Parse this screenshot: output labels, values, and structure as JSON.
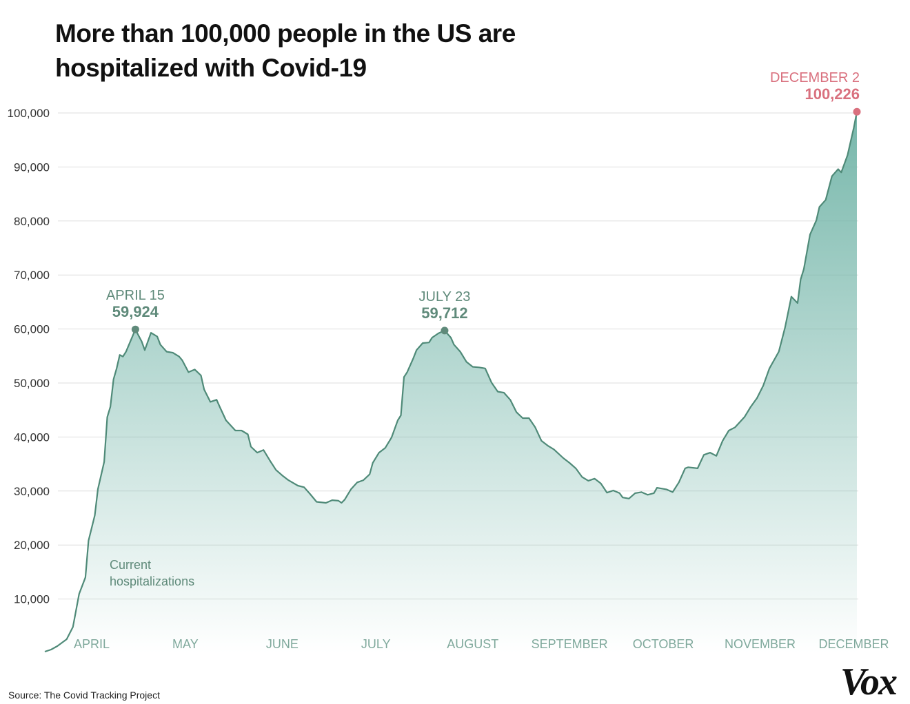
{
  "chart_data": {
    "type": "area",
    "title": "More than 100,000 people in the US are hospitalized with Covid-19",
    "source": "Source: The Covid Tracking Project",
    "logo": "Vox",
    "x": [
      77,
      79,
      81,
      84,
      86,
      88,
      90,
      91,
      93,
      94,
      96,
      97,
      98,
      99,
      100,
      101,
      102,
      103,
      106,
      107,
      108,
      109,
      111,
      113,
      114,
      116,
      118,
      120,
      121,
      123,
      125,
      127,
      128,
      130,
      132,
      133,
      135,
      138,
      140,
      142,
      143,
      145,
      147,
      149,
      151,
      153,
      155,
      158,
      160,
      162,
      164,
      167,
      169,
      171,
      172,
      173,
      175,
      177,
      179,
      181,
      182,
      184,
      186,
      188,
      190,
      191,
      192,
      193,
      195,
      196,
      198,
      200,
      201,
      203,
      205,
      207,
      208,
      210,
      212,
      214,
      216,
      218,
      220,
      222,
      224,
      226,
      228,
      230,
      232,
      234,
      236,
      238,
      240,
      243,
      245,
      247,
      249,
      251,
      253,
      255,
      257,
      259,
      261,
      262,
      264,
      266,
      268,
      270,
      272,
      273,
      276,
      278,
      280,
      282,
      283,
      286,
      288,
      290,
      292,
      294,
      296,
      298,
      301,
      303,
      305,
      307,
      309,
      312,
      314,
      316,
      318,
      319,
      320,
      322,
      324,
      325,
      327,
      329,
      331,
      332,
      334,
      336,
      337
    ],
    "series": [
      {
        "name": "Current hospitalizations",
        "color": "#4f8a78",
        "values": [
          250,
          640,
          1270,
          2550,
          4840,
          10960,
          14000,
          20800,
          25500,
          30340,
          35400,
          43700,
          45600,
          50700,
          52700,
          55200,
          54900,
          55800,
          59924,
          58800,
          57700,
          56100,
          59300,
          58600,
          57100,
          55800,
          55600,
          54900,
          54200,
          52000,
          52500,
          51400,
          48800,
          46500,
          46900,
          45600,
          43100,
          41200,
          41200,
          40500,
          38200,
          37100,
          37600,
          35700,
          33900,
          32900,
          32000,
          31000,
          30700,
          29400,
          28000,
          27800,
          28300,
          28200,
          27800,
          28400,
          30300,
          31600,
          32000,
          33100,
          35200,
          37100,
          38000,
          39900,
          43100,
          44000,
          51100,
          52000,
          54600,
          56100,
          57400,
          57500,
          58400,
          59200,
          59712,
          58400,
          57100,
          55800,
          53900,
          53000,
          52900,
          52700,
          50100,
          48400,
          48200,
          46900,
          44600,
          43500,
          43500,
          41800,
          39300,
          38400,
          37700,
          36100,
          35200,
          34200,
          32600,
          31900,
          32300,
          31400,
          29700,
          30100,
          29600,
          28800,
          28600,
          29600,
          29800,
          29300,
          29600,
          30600,
          30300,
          29800,
          31600,
          34200,
          34400,
          34200,
          36700,
          37100,
          36500,
          39300,
          41200,
          41800,
          43700,
          45600,
          47200,
          49500,
          52700,
          55800,
          60300,
          66000,
          64800,
          69200,
          71100,
          77500,
          80100,
          82600,
          83900,
          88300,
          89600,
          89000,
          92200,
          97300,
          100226
        ]
      }
    ],
    "xlim": [
      77,
      337
    ],
    "xticks": [
      {
        "value": 92,
        "label": "APRIL"
      },
      {
        "value": 122,
        "label": "MAY"
      },
      {
        "value": 153,
        "label": "JUNE"
      },
      {
        "value": 183,
        "label": "JULY"
      },
      {
        "value": 214,
        "label": "AUGUST"
      },
      {
        "value": 245,
        "label": "SEPTEMBER"
      },
      {
        "value": 275,
        "label": "OCTOBER"
      },
      {
        "value": 306,
        "label": "NOVEMBER"
      },
      {
        "value": 336,
        "label": "DECEMBER"
      }
    ],
    "ylim": [
      0,
      100000
    ],
    "yticks": [
      {
        "value": 10000,
        "label": "10,000"
      },
      {
        "value": 20000,
        "label": "20,000"
      },
      {
        "value": 30000,
        "label": "30,000"
      },
      {
        "value": 40000,
        "label": "40,000"
      },
      {
        "value": 50000,
        "label": "50,000"
      },
      {
        "value": 60000,
        "label": "60,000"
      },
      {
        "value": 70000,
        "label": "70,000"
      },
      {
        "value": 80000,
        "label": "80,000"
      },
      {
        "value": 90000,
        "label": "90,000"
      },
      {
        "value": 100000,
        "label": "100,000"
      }
    ],
    "grid": true,
    "annotations": [
      {
        "label": "APRIL 15",
        "x": 106,
        "y": 59924,
        "value_label": "59,924",
        "color": "#5f8a7a"
      },
      {
        "label": "JULY 23",
        "x": 205,
        "y": 59712,
        "value_label": "59,712",
        "color": "#5f8a7a"
      },
      {
        "label": "DECEMBER 2",
        "x": 337,
        "y": 100226,
        "value_label": "100,226",
        "color": "#d9707e"
      }
    ]
  }
}
